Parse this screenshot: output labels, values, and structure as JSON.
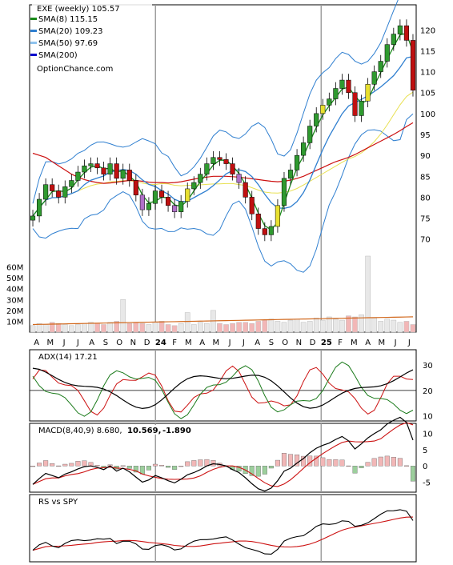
{
  "chart_data": {
    "type": "line",
    "title": "EXE (weekly) 105.57",
    "source": "OptionChance.com",
    "x_labels": [
      "A",
      "M",
      "J",
      "J",
      "A",
      "S",
      "O",
      "N",
      "D",
      "24",
      "F",
      "M",
      "A",
      "M",
      "J",
      "J",
      "A",
      "S",
      "O",
      "N",
      "D",
      "25",
      "F",
      "M",
      "A",
      "M",
      "J",
      "J"
    ],
    "price_panel": {
      "yticks": [
        70,
        75,
        80,
        85,
        90,
        95,
        100,
        105,
        110,
        115,
        120
      ],
      "ylim": [
        64,
        126
      ],
      "legend": [
        {
          "label": "SMA(8) 115.15",
          "color": "#1a8a1a"
        },
        {
          "label": "SMA(20) 109.23",
          "color": "#2f7fd0"
        },
        {
          "label": "SMA(50) 97.69",
          "color": "#8fc3ee"
        },
        {
          "label": "SMA(200)",
          "color": "#0000cc"
        }
      ],
      "close": [
        75.5,
        79.5,
        83.0,
        81.5,
        80.0,
        82.5,
        84.0,
        86.0,
        87.5,
        88.0,
        87.0,
        85.5,
        88.0,
        84.5,
        86.5,
        84.0,
        80.5,
        77.0,
        78.5,
        81.5,
        80.0,
        78.0,
        76.5,
        79.0,
        82.0,
        83.5,
        85.5,
        88.0,
        89.5,
        89.0,
        88.0,
        85.5,
        83.5,
        80.0,
        76.0,
        72.5,
        71.0,
        73.0,
        78.0,
        84.5,
        86.5,
        90.0,
        93.0,
        97.0,
        100.0,
        102.0,
        103.5,
        106.0,
        108.0,
        105.0,
        99.5,
        103.0,
        107.0,
        110.0,
        112.5,
        116.5,
        119.0,
        121.0,
        117.5,
        105.57
      ],
      "sma8_value": 115.15,
      "sma20_value": 109.23,
      "sma50_value": 97.69,
      "sma200": [
        90.5,
        90.0,
        89.5,
        88.5,
        87.5,
        86.5,
        85.5,
        84.8,
        84.2,
        83.8,
        83.5,
        83.3,
        83.4,
        83.6,
        83.8,
        84.0,
        84.0,
        83.8,
        83.6,
        83.5,
        83.5,
        83.4,
        83.5,
        83.7,
        84.0,
        84.3,
        84.6,
        84.8,
        85.0,
        85.0,
        85.0,
        84.9,
        84.8,
        84.6,
        84.4,
        84.2,
        84.0,
        83.8,
        83.7,
        83.8,
        84.1,
        84.5,
        85.0,
        85.7,
        86.4,
        87.1,
        87.8,
        88.5,
        89.0,
        89.5,
        90.2,
        91.0,
        91.8,
        92.6,
        93.4,
        94.2,
        95.0,
        95.9,
        96.9,
        97.8
      ]
    },
    "volume_panel": {
      "yticks": [
        "10M",
        "20M",
        "30M",
        "40M",
        "50M",
        "60M"
      ],
      "ylim": [
        0,
        70000000
      ],
      "volume_millions": [
        6,
        8,
        7,
        9,
        8,
        7,
        6,
        7,
        8,
        9,
        8,
        7,
        9,
        10,
        30,
        8,
        9,
        8,
        7,
        9,
        10,
        7,
        6,
        8,
        18,
        7,
        9,
        8,
        20,
        8,
        7,
        8,
        9,
        9,
        8,
        10,
        11,
        12,
        10,
        9,
        11,
        12,
        9,
        10,
        13,
        11,
        14,
        12,
        11,
        15,
        14,
        16,
        70,
        13,
        10,
        12,
        11,
        9,
        10,
        7
      ]
    },
    "adx_panel": {
      "label": "ADX(14) 17.21",
      "yticks": [
        10,
        20,
        30
      ],
      "ylim": [
        8,
        36
      ]
    },
    "macd_panel": {
      "label": "MACD(8,40,9) 8.680,",
      "signal_label": "10.569,",
      "hist_label": "-1.890",
      "signal_color": "#cc0000",
      "hist_color": "#2255aa",
      "yticks": [
        -5,
        0,
        5,
        10
      ],
      "ylim": [
        -8,
        13
      ]
    },
    "rs_panel": {
      "label": "RS vs SPY"
    }
  }
}
